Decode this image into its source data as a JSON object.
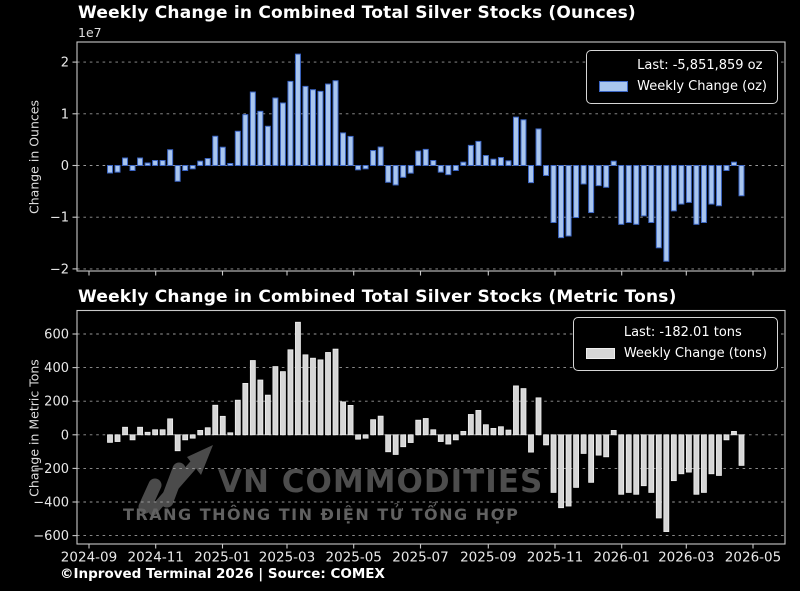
{
  "figure": {
    "background": "#000000",
    "text_color": "#ffffff"
  },
  "footer": {
    "text": "©Inproved Terminal 2026 | Source: COMEX"
  },
  "watermark": {
    "title": "VN COMMODITIES",
    "subtitle": "TRANG THÔNG TIN ĐIỆN TỬ TỔNG HỢP",
    "color": "#4d4d4d"
  },
  "x_axis": {
    "tick_labels": [
      "2024-09",
      "2024-11",
      "2025-01",
      "2025-03",
      "2025-05",
      "2025-07",
      "2025-09",
      "2025-11",
      "2026-01",
      "2026-03",
      "2026-05"
    ]
  },
  "chart_data": [
    {
      "type": "bar",
      "title": "Weekly Change in Combined Total Silver Stocks (Ounces)",
      "ylabel": "Change in Ounces",
      "scale_label": "1e7",
      "unit": "oz",
      "legend": {
        "last": "Last: -5,851,859 oz",
        "series": "Weekly Change (oz)"
      },
      "bar_fill": "#a9c6ee",
      "bar_edge": "#3c66c4",
      "grid": "horizontal dashed",
      "legend_position": "upper right",
      "y_ticks": [
        20000000,
        10000000,
        0,
        -10000000,
        -20000000
      ],
      "y_tick_labels": [
        "2",
        "1",
        "0",
        "−1",
        "−2"
      ],
      "ylim": [
        -20400000,
        23900000
      ],
      "last_value_oz": -5851859,
      "value_multiplier": 32150.7,
      "values_unit": "metric tons (multiply by value_multiplier to get ounces)",
      "values": [
        -45,
        -40,
        45,
        -30,
        45,
        15,
        30,
        30,
        95,
        -95,
        -30,
        -20,
        26,
        42,
        176,
        110,
        12,
        206,
        306,
        442,
        326,
        236,
        406,
        376,
        506,
        670,
        476,
        456,
        446,
        490,
        510,
        196,
        175,
        -26,
        -20,
        90,
        111,
        -101,
        -117,
        -71,
        -46,
        87,
        97,
        30,
        -40,
        -55,
        -30,
        20,
        121,
        145,
        60,
        38,
        48,
        28,
        291,
        275,
        -103,
        220,
        -60,
        -343,
        -434,
        -424,
        -313,
        -111,
        -283,
        -121,
        -131,
        26,
        -354,
        -343,
        -354,
        -303,
        -343,
        -495,
        -576,
        -273,
        -232,
        -222,
        -354,
        -343,
        -232,
        -242,
        -30,
        20,
        -182.01
      ]
    },
    {
      "type": "bar",
      "title": "Weekly Change in Combined Total Silver Stocks (Metric Tons)",
      "ylabel": "Change in Metric Tons",
      "unit": "tons",
      "legend": {
        "last": "Last: -182.01 tons",
        "series": "Weekly Change (tons)"
      },
      "bar_fill": "#d6d6d6",
      "bar_edge": "#efefef",
      "grid": "horizontal dashed",
      "legend_position": "upper right",
      "y_ticks": [
        600,
        400,
        200,
        0,
        -200,
        -400,
        -600
      ],
      "y_tick_labels": [
        "600",
        "400",
        "200",
        "0",
        "−200",
        "−400",
        "−600"
      ],
      "ylim": [
        -656,
        740
      ],
      "last_value_tons": -182.01,
      "value_multiplier": 1,
      "values_unit": "metric tons",
      "values": [
        -45,
        -40,
        45,
        -30,
        45,
        15,
        30,
        30,
        95,
        -95,
        -30,
        -20,
        26,
        42,
        176,
        110,
        12,
        206,
        306,
        442,
        326,
        236,
        406,
        376,
        506,
        670,
        476,
        456,
        446,
        490,
        510,
        196,
        175,
        -26,
        -20,
        90,
        111,
        -101,
        -117,
        -71,
        -46,
        87,
        97,
        30,
        -40,
        -55,
        -30,
        20,
        121,
        145,
        60,
        38,
        48,
        28,
        291,
        275,
        -103,
        220,
        -60,
        -343,
        -434,
        -424,
        -313,
        -111,
        -283,
        -121,
        -131,
        26,
        -354,
        -343,
        -354,
        -303,
        -343,
        -495,
        -576,
        -273,
        -232,
        -222,
        -354,
        -343,
        -232,
        -242,
        -30,
        20,
        -182.01
      ]
    }
  ]
}
